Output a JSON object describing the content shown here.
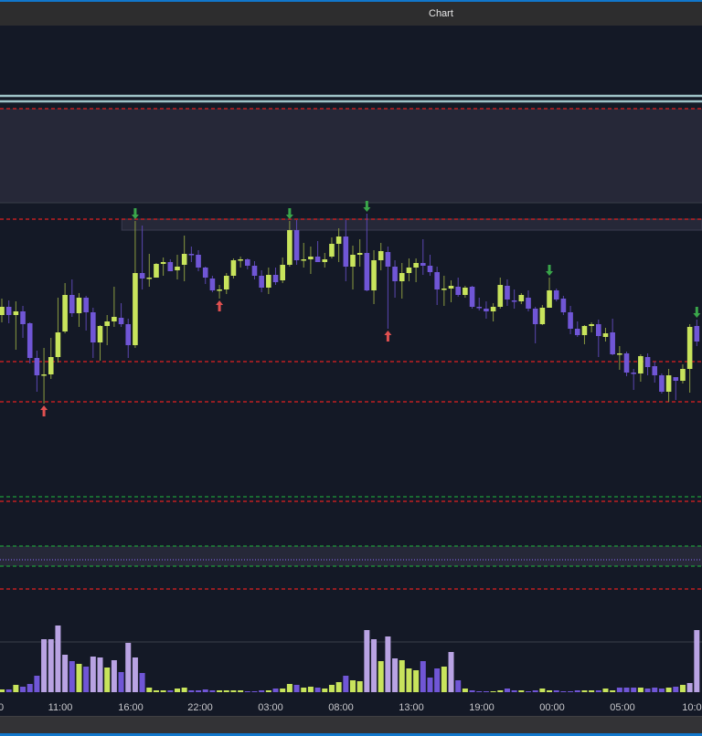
{
  "window": {
    "title": "Chart"
  },
  "colors": {
    "background": "#141926",
    "bull": "#c8e45c",
    "bear": "#7056d6",
    "volume_high": "#b9a3e3",
    "resistance": "#e02020",
    "support_green": "#1f9a3a",
    "band": "#262838",
    "level_teal": "#9fc3c8",
    "signal_down": "#3aa64a",
    "signal_up": "#e05050"
  },
  "chart_data": {
    "type": "candlestick",
    "x_tick_labels": [
      "0",
      "11:00",
      "16:00",
      "22:00",
      "03:00",
      "08:00",
      "13:00",
      "19:00",
      "00:00",
      "05:00",
      "10:00"
    ],
    "ohlc": [
      [
        655,
        673,
        647,
        664
      ],
      [
        664,
        671,
        646,
        655
      ],
      [
        655,
        670,
        617,
        659
      ],
      [
        659,
        665,
        630,
        645
      ],
      [
        646,
        647,
        602,
        608
      ],
      [
        608,
        616,
        571,
        589
      ],
      [
        589,
        619,
        558,
        590
      ],
      [
        590,
        630,
        585,
        609
      ],
      [
        609,
        674,
        603,
        636
      ],
      [
        637,
        690,
        635,
        677
      ],
      [
        677,
        694,
        653,
        657
      ],
      [
        657,
        679,
        642,
        674
      ],
      [
        674,
        676,
        638,
        658
      ],
      [
        658,
        663,
        608,
        625
      ],
      [
        625,
        644,
        605,
        643
      ],
      [
        643,
        655,
        622,
        648
      ],
      [
        648,
        686,
        642,
        653
      ],
      [
        652,
        668,
        642,
        645
      ],
      [
        645,
        651,
        608,
        622
      ],
      [
        622,
        758,
        619,
        701
      ],
      [
        701,
        753,
        683,
        695
      ],
      [
        695,
        722,
        686,
        696
      ],
      [
        696,
        712,
        696,
        711
      ],
      [
        711,
        718,
        698,
        713
      ],
      [
        713,
        716,
        703,
        703
      ],
      [
        704,
        721,
        694,
        708
      ],
      [
        710,
        742,
        692,
        722
      ],
      [
        722,
        730,
        713,
        721
      ],
      [
        721,
        726,
        703,
        707
      ],
      [
        707,
        708,
        689,
        696
      ],
      [
        695,
        698,
        680,
        682
      ],
      [
        682,
        688,
        673,
        683
      ],
      [
        683,
        701,
        678,
        698
      ],
      [
        698,
        717,
        695,
        715
      ],
      [
        715,
        719,
        707,
        716
      ],
      [
        716,
        717,
        705,
        709
      ],
      [
        709,
        714,
        694,
        698
      ],
      [
        698,
        704,
        680,
        685
      ],
      [
        685,
        707,
        678,
        699
      ],
      [
        699,
        707,
        688,
        691
      ],
      [
        693,
        718,
        690,
        710
      ],
      [
        710,
        758,
        708,
        748
      ],
      [
        748,
        759,
        710,
        715
      ],
      [
        715,
        734,
        707,
        716
      ],
      [
        716,
        730,
        700,
        719
      ],
      [
        719,
        736,
        713,
        713
      ],
      [
        713,
        723,
        707,
        716
      ],
      [
        719,
        740,
        717,
        733
      ],
      [
        733,
        750,
        713,
        741
      ],
      [
        741,
        759,
        692,
        708
      ],
      [
        708,
        731,
        683,
        721
      ],
      [
        721,
        738,
        708,
        723
      ],
      [
        723,
        766,
        681,
        682
      ],
      [
        682,
        726,
        667,
        715
      ],
      [
        715,
        734,
        704,
        725
      ],
      [
        724,
        730,
        640,
        708
      ],
      [
        708,
        715,
        674,
        692
      ],
      [
        692,
        712,
        673,
        701
      ],
      [
        701,
        717,
        692,
        707
      ],
      [
        707,
        717,
        691,
        712
      ],
      [
        712,
        738,
        699,
        709
      ],
      [
        709,
        721,
        698,
        702
      ],
      [
        702,
        708,
        666,
        683
      ],
      [
        683,
        698,
        665,
        684
      ],
      [
        684,
        693,
        669,
        687
      ],
      [
        686,
        696,
        675,
        677
      ],
      [
        677,
        687,
        674,
        685
      ],
      [
        686,
        687,
        662,
        664
      ],
      [
        664,
        674,
        660,
        663
      ],
      [
        662,
        670,
        651,
        659
      ],
      [
        659,
        668,
        648,
        664
      ],
      [
        664,
        696,
        662,
        688
      ],
      [
        687,
        694,
        665,
        672
      ],
      [
        671,
        683,
        662,
        670
      ],
      [
        670,
        679,
        667,
        677
      ],
      [
        674,
        682,
        659,
        662
      ],
      [
        662,
        664,
        624,
        645
      ],
      [
        645,
        666,
        644,
        663
      ],
      [
        663,
        696,
        663,
        682
      ],
      [
        682,
        684,
        670,
        672
      ],
      [
        673,
        676,
        655,
        658
      ],
      [
        658,
        665,
        634,
        640
      ],
      [
        640,
        648,
        631,
        633
      ],
      [
        633,
        644,
        623,
        643
      ],
      [
        643,
        647,
        636,
        645
      ],
      [
        645,
        650,
        609,
        632
      ],
      [
        631,
        641,
        626,
        635
      ],
      [
        636,
        651,
        611,
        612
      ],
      [
        612,
        621,
        595,
        613
      ],
      [
        613,
        615,
        588,
        592
      ],
      [
        592,
        596,
        573,
        591
      ],
      [
        591,
        612,
        582,
        610
      ],
      [
        609,
        613,
        589,
        598
      ],
      [
        599,
        604,
        581,
        589
      ],
      [
        589,
        591,
        569,
        571
      ],
      [
        571,
        596,
        560,
        589
      ],
      [
        587,
        587,
        562,
        583
      ],
      [
        583,
        601,
        580,
        596
      ],
      [
        596,
        645,
        570,
        642
      ],
      [
        643,
        650,
        621,
        626
      ]
    ],
    "volume": [
      3,
      3,
      8,
      6,
      9,
      18,
      58,
      58,
      73,
      41,
      34,
      31,
      28,
      39,
      38,
      27,
      35,
      22,
      54,
      38,
      21,
      5,
      2,
      2,
      2,
      4,
      5,
      2,
      2,
      3,
      2,
      2,
      2,
      2,
      2,
      1,
      1,
      2,
      2,
      4,
      4,
      9,
      8,
      5,
      6,
      5,
      4,
      8,
      11,
      18,
      13,
      12,
      68,
      58,
      34,
      61,
      37,
      35,
      26,
      24,
      34,
      16,
      26,
      28,
      44,
      13,
      4,
      2,
      1,
      1,
      1,
      2,
      4,
      2,
      2,
      1,
      2,
      4,
      2,
      2,
      1,
      1,
      2,
      2,
      2,
      2,
      4,
      2,
      5,
      5,
      5,
      5,
      4,
      5,
      4,
      5,
      6,
      8,
      10,
      68,
      37
    ],
    "volume_kind": [
      "G",
      "P",
      "G",
      "P",
      "P",
      "P",
      "L",
      "L",
      "L",
      "L",
      "P",
      "G",
      "P",
      "L",
      "L",
      "G",
      "L",
      "P",
      "L",
      "L",
      "P",
      "G",
      "G",
      "G",
      "P",
      "G",
      "G",
      "P",
      "P",
      "P",
      "P",
      "G",
      "G",
      "G",
      "G",
      "P",
      "P",
      "P",
      "G",
      "P",
      "G",
      "G",
      "P",
      "G",
      "G",
      "P",
      "G",
      "G",
      "G",
      "P",
      "G",
      "G",
      "L",
      "L",
      "G",
      "L",
      "L",
      "G",
      "G",
      "G",
      "P",
      "P",
      "P",
      "G",
      "L",
      "P",
      "G",
      "P",
      "P",
      "P",
      "G",
      "G",
      "P",
      "P",
      "G",
      "P",
      "P",
      "G",
      "G",
      "P",
      "P",
      "P",
      "P",
      "G",
      "G",
      "P",
      "G",
      "G",
      "P",
      "P",
      "P",
      "G",
      "P",
      "P",
      "P",
      "G",
      "P",
      "G",
      "L",
      "L",
      "L"
    ],
    "signals": [
      {
        "index": 19,
        "dir": "down"
      },
      {
        "index": 41,
        "dir": "down"
      },
      {
        "index": 52,
        "dir": "down"
      },
      {
        "index": 78,
        "dir": "down"
      },
      {
        "index": 99,
        "dir": "down"
      },
      {
        "index": 6,
        "dir": "up"
      },
      {
        "index": 31,
        "dir": "up"
      },
      {
        "index": 55,
        "dir": "up"
      }
    ],
    "levels": [
      {
        "price": 895,
        "style": "solid",
        "color": "teal"
      },
      {
        "price": 889,
        "style": "solid",
        "color": "teal"
      },
      {
        "price": 881,
        "style": "dashed",
        "color": "red"
      },
      {
        "price": 760,
        "style": "dashed",
        "color": "red"
      },
      {
        "price": 604,
        "style": "dashed",
        "color": "red"
      },
      {
        "price": 560,
        "style": "dashed",
        "color": "red"
      },
      {
        "price": 456,
        "style": "dashed",
        "color": "green"
      },
      {
        "price": 451,
        "style": "dashed",
        "color": "red"
      },
      {
        "price": 402,
        "style": "dashed",
        "color": "green"
      },
      {
        "price": 387,
        "style": "dotted",
        "color": "purple"
      },
      {
        "price": 380,
        "style": "dashed",
        "color": "green"
      },
      {
        "price": 355,
        "style": "dashed",
        "color": "red"
      }
    ],
    "zones": [
      {
        "from": 881,
        "to": 778
      },
      {
        "from": 760,
        "to": 748,
        "start_index": 18
      },
      {
        "from": 402,
        "to": 380
      }
    ]
  }
}
